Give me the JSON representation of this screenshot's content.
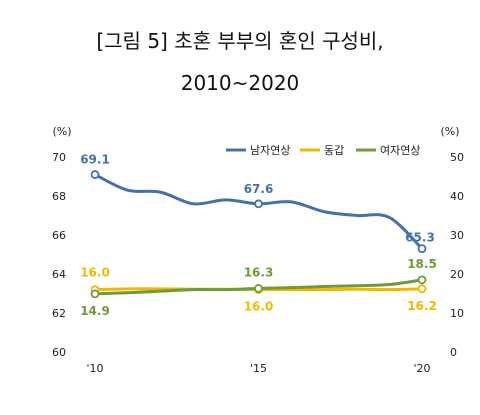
{
  "chart_data": {
    "type": "line",
    "title_line1": "[그림 5] 초혼 부부의 혼인 구성비,",
    "title_line2": "2010~2020",
    "left_unit": "(%)",
    "right_unit": "(%)",
    "x": [
      2010,
      2011,
      2012,
      2013,
      2014,
      2015,
      2016,
      2017,
      2018,
      2019,
      2020
    ],
    "x_tick_labels": [
      {
        "x": 2010,
        "label": "'10"
      },
      {
        "x": 2015,
        "label": "'15"
      },
      {
        "x": 2020,
        "label": "'20"
      }
    ],
    "left_axis": {
      "min": 60,
      "max": 70,
      "ticks": [
        60,
        62,
        64,
        66,
        68,
        70
      ]
    },
    "right_axis": {
      "min": 0,
      "max": 50,
      "ticks": [
        0,
        10,
        20,
        30,
        40,
        50
      ]
    },
    "series": [
      {
        "name": "남자연상",
        "axis": "left",
        "color": "#4472A8",
        "values": [
          69.1,
          68.3,
          68.2,
          67.6,
          67.8,
          67.6,
          67.7,
          67.2,
          67.0,
          66.9,
          65.3
        ],
        "labels": [
          {
            "index": 0,
            "text": "69.1"
          },
          {
            "index": 5,
            "text": "67.6"
          },
          {
            "index": 10,
            "text": "65.3"
          }
        ]
      },
      {
        "name": "동갑",
        "axis": "right",
        "color": "#F2B800",
        "values": [
          16.0,
          16.2,
          16.2,
          16.1,
          16.1,
          16.0,
          16.0,
          16.0,
          16.1,
          16.0,
          16.2
        ],
        "labels": [
          {
            "index": 0,
            "text": "16.0"
          },
          {
            "index": 5,
            "text": "16.0"
          },
          {
            "index": 10,
            "text": "16.2"
          }
        ]
      },
      {
        "name": "여자연상",
        "axis": "right",
        "color": "#6E9A3A",
        "values": [
          14.9,
          15.2,
          15.6,
          16.0,
          16.0,
          16.3,
          16.5,
          16.8,
          17.0,
          17.3,
          18.5
        ],
        "labels": [
          {
            "index": 0,
            "text": "14.9"
          },
          {
            "index": 5,
            "text": "16.3"
          },
          {
            "index": 10,
            "text": "18.5"
          }
        ]
      }
    ],
    "legend_position": "top-right",
    "grid": false
  }
}
